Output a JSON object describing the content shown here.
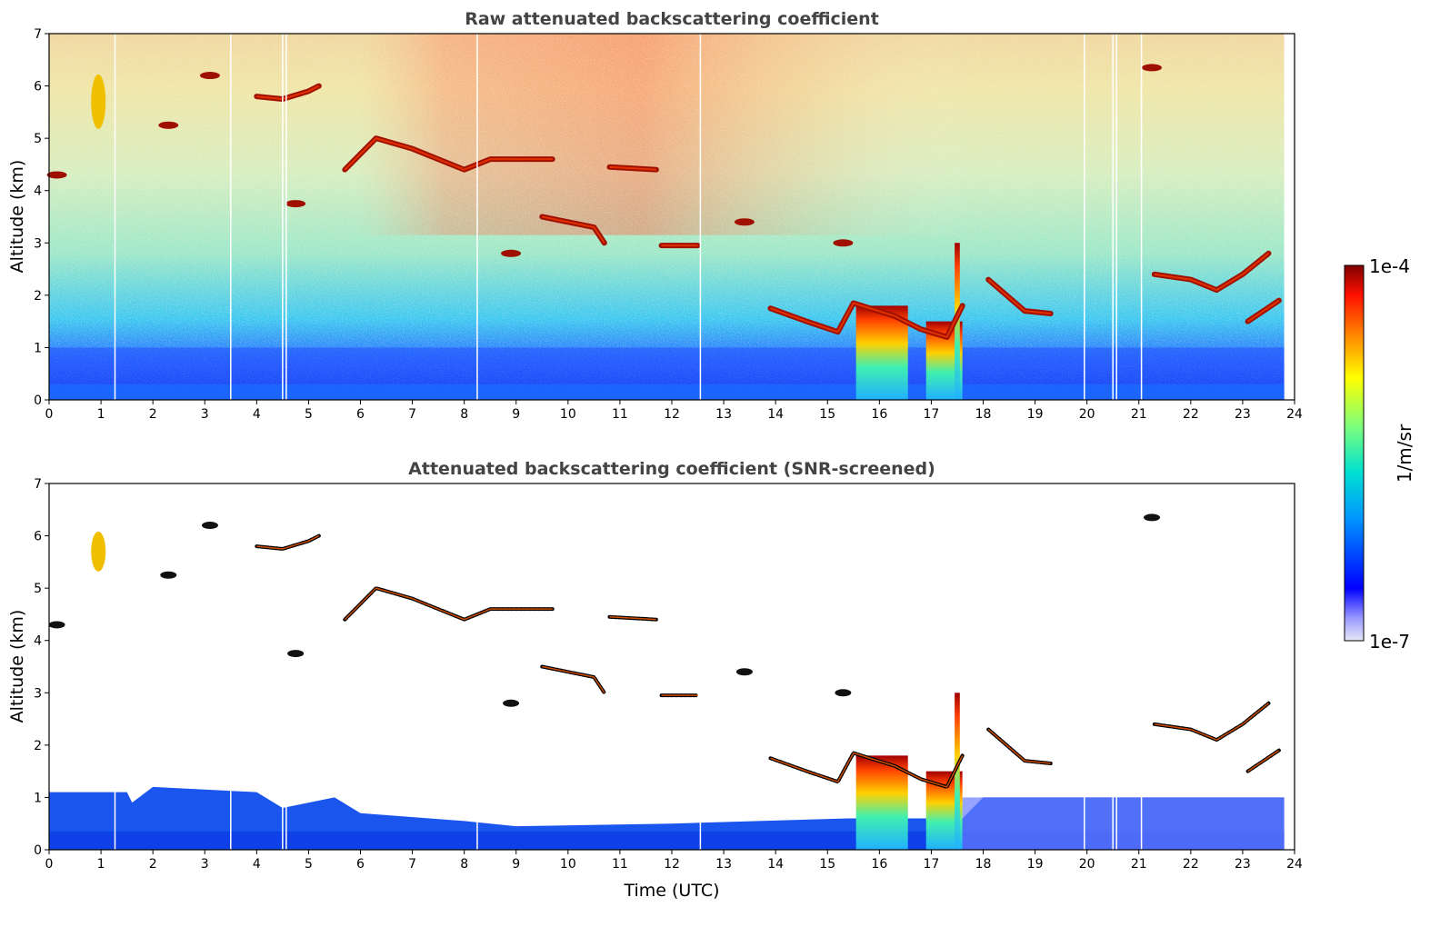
{
  "chart_data": [
    {
      "type": "heatmap",
      "title": "Raw attenuated backscattering coefficient",
      "xlabel": "",
      "ylabel": "Altitude (km)",
      "xlim": [
        0,
        24
      ],
      "ylim": [
        0,
        7
      ],
      "xticks": [
        "0",
        "1",
        "2",
        "3",
        "4",
        "5",
        "6",
        "7",
        "8",
        "9",
        "10",
        "11",
        "12",
        "13",
        "14",
        "15",
        "16",
        "17",
        "18",
        "19",
        "20",
        "21",
        "22",
        "23",
        "24"
      ],
      "yticks": [
        "0",
        "1",
        "2",
        "3",
        "4",
        "5",
        "6",
        "7"
      ],
      "data_end_time": 23.8,
      "gaps": [
        1.27,
        3.5,
        4.5,
        4.57,
        8.25,
        12.55,
        19.95,
        20.5,
        20.57,
        21.05
      ],
      "features": [
        {
          "kind": "surface-layer",
          "x": [
            0,
            23.8
          ],
          "top_km": 1.0
        },
        {
          "kind": "cloud",
          "x": [
            15.55,
            16.55
          ],
          "base_km": 0.0,
          "top_km": 1.8,
          "color": "mixed"
        },
        {
          "kind": "cloud",
          "x": [
            16.9,
            17.6
          ],
          "base_km": 0.0,
          "top_km": 1.5,
          "color": "mixed"
        },
        {
          "kind": "cloud",
          "x": [
            17.45,
            17.55
          ],
          "base_km": 0.0,
          "top_km": 3.0,
          "color": "mixed"
        },
        {
          "kind": "layer",
          "points": [
            [
              4.0,
              5.8
            ],
            [
              4.5,
              5.75
            ],
            [
              5.0,
              5.9
            ],
            [
              5.2,
              6.0
            ]
          ]
        },
        {
          "kind": "layer",
          "points": [
            [
              5.7,
              4.4
            ],
            [
              6.3,
              5.0
            ],
            [
              7.0,
              4.8
            ],
            [
              8.0,
              4.4
            ],
            [
              8.5,
              4.6
            ],
            [
              9.7,
              4.6
            ]
          ]
        },
        {
          "kind": "layer",
          "points": [
            [
              10.8,
              4.45
            ],
            [
              11.7,
              4.4
            ]
          ]
        },
        {
          "kind": "layer",
          "points": [
            [
              9.5,
              3.5
            ],
            [
              10.5,
              3.3
            ],
            [
              10.7,
              3.0
            ]
          ]
        },
        {
          "kind": "layer",
          "points": [
            [
              11.8,
              2.95
            ],
            [
              12.5,
              2.95
            ]
          ]
        },
        {
          "kind": "layer",
          "points": [
            [
              13.9,
              1.75
            ],
            [
              14.6,
              1.5
            ],
            [
              15.2,
              1.3
            ],
            [
              15.5,
              1.85
            ],
            [
              16.3,
              1.6
            ],
            [
              16.8,
              1.35
            ],
            [
              17.3,
              1.2
            ],
            [
              17.6,
              1.8
            ]
          ]
        },
        {
          "kind": "layer",
          "points": [
            [
              18.1,
              2.3
            ],
            [
              18.8,
              1.7
            ],
            [
              19.3,
              1.65
            ]
          ]
        },
        {
          "kind": "layer",
          "points": [
            [
              21.3,
              2.4
            ],
            [
              22.0,
              2.3
            ],
            [
              22.5,
              2.1
            ],
            [
              23.0,
              2.4
            ],
            [
              23.5,
              2.8
            ]
          ]
        },
        {
          "kind": "layer",
          "points": [
            [
              23.1,
              1.5
            ],
            [
              23.7,
              1.9
            ]
          ]
        },
        {
          "kind": "blob",
          "x": 0.95,
          "y": 5.7,
          "color": "yellow"
        },
        {
          "kind": "blob",
          "x": 2.3,
          "y": 5.25
        },
        {
          "kind": "blob",
          "x": 3.1,
          "y": 6.2
        },
        {
          "kind": "blob",
          "x": 0.15,
          "y": 4.3
        },
        {
          "kind": "blob",
          "x": 4.75,
          "y": 3.75
        },
        {
          "kind": "blob",
          "x": 8.9,
          "y": 2.8
        },
        {
          "kind": "blob",
          "x": 13.4,
          "y": 3.4
        },
        {
          "kind": "blob",
          "x": 15.3,
          "y": 3.0
        },
        {
          "kind": "blob",
          "x": 21.25,
          "y": 6.35
        }
      ]
    },
    {
      "type": "heatmap",
      "title": "Attenuated backscattering coefficient (SNR-screened)",
      "xlabel": "Time (UTC)",
      "ylabel": "Altitude (km)",
      "xlim": [
        0,
        24
      ],
      "ylim": [
        0,
        7
      ],
      "xticks": [
        "0",
        "1",
        "2",
        "3",
        "4",
        "5",
        "6",
        "7",
        "8",
        "9",
        "10",
        "11",
        "12",
        "13",
        "14",
        "15",
        "16",
        "17",
        "18",
        "19",
        "20",
        "21",
        "22",
        "23",
        "24"
      ],
      "yticks": [
        "0",
        "1",
        "2",
        "3",
        "4",
        "5",
        "6",
        "7"
      ],
      "boundary_layer_top_km": [
        [
          0,
          1.1
        ],
        [
          1.5,
          1.1
        ],
        [
          1.6,
          0.9
        ],
        [
          2.0,
          1.2
        ],
        [
          4.0,
          1.1
        ],
        [
          4.5,
          0.8
        ],
        [
          5.5,
          1.0
        ],
        [
          6.0,
          0.7
        ],
        [
          8.0,
          0.55
        ],
        [
          9.0,
          0.45
        ],
        [
          12.0,
          0.5
        ],
        [
          15.4,
          0.6
        ],
        [
          17.6,
          0.6
        ],
        [
          18.0,
          1.0
        ],
        [
          23.8,
          1.0
        ]
      ]
    }
  ],
  "colorbar": {
    "max_label": "1e-4",
    "min_label": "1e-7",
    "units_label": "1/m/sr",
    "colors": [
      "#e8e8f8",
      "#0000ff",
      "#00ccff",
      "#4cff8c",
      "#ffff00",
      "#ff4000",
      "#800000"
    ]
  }
}
